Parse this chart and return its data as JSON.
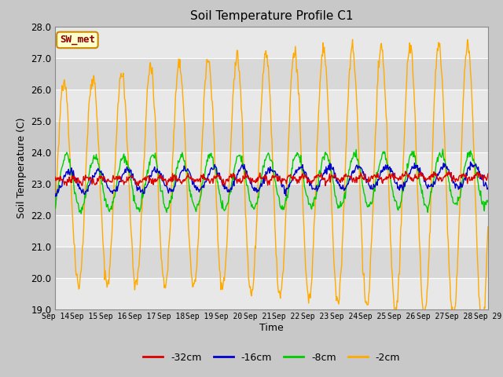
{
  "title": "Soil Temperature Profile C1",
  "xlabel": "Time",
  "ylabel": "Soil Temperature (C)",
  "ylim": [
    19.0,
    28.0
  ],
  "yticks": [
    19.0,
    20.0,
    21.0,
    22.0,
    23.0,
    24.0,
    25.0,
    26.0,
    27.0,
    28.0
  ],
  "annotation_text": "SW_met",
  "annotation_bg": "#ffffcc",
  "annotation_border": "#cc8800",
  "annotation_text_color": "#880000",
  "colors": {
    "-32cm": "#dd0000",
    "-16cm": "#0000cc",
    "-8cm": "#00cc00",
    "-2cm": "#ffaa00"
  },
  "legend_labels": [
    "-32cm",
    "-16cm",
    "-8cm",
    "-2cm"
  ],
  "x_tick_labels": [
    "Sep 14",
    "Sep 15",
    "Sep 16",
    "Sep 17",
    "Sep 18",
    "Sep 19",
    "Sep 20",
    "Sep 21",
    "Sep 22",
    "Sep 23",
    "Sep 24",
    "Sep 25",
    "Sep 26",
    "Sep 27",
    "Sep 28",
    "Sep 29"
  ],
  "n_days": 15,
  "samples_per_day": 48,
  "band_colors": [
    "#e8e8e8",
    "#d8d8d8"
  ],
  "fig_bg": "#c8c8c8",
  "plot_bg": "#ffffff"
}
